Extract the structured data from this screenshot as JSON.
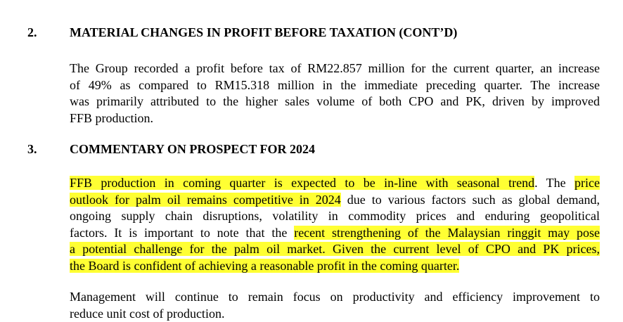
{
  "section2": {
    "number": "2.",
    "title": "MATERIAL CHANGES IN PROFIT BEFORE TAXATION (CONT’D)",
    "lines": [
      "The Group recorded a profit before tax of RM22.857 million for the current quarter, an increase",
      "of 49% as compared to RM15.318 million in the immediate preceding quarter. The increase",
      "was primarily attributed to the higher sales volume of both CPO and PK, driven by improved",
      "FFB production."
    ]
  },
  "section3": {
    "number": "3.",
    "title": "COMMENTARY ON PROSPECT FOR 2024",
    "para1": {
      "l1_hl1": "FFB production in coming quarter is expected to be in-line with seasonal trend",
      "l1_t1": ". The ",
      "l1_hl2": "price",
      "l2_hl1": "outlook for palm oil remains competitive in 2024",
      "l2_t1": " due to various factors such as global demand,",
      "l3": "ongoing supply chain disruptions, volatility in commodity prices and enduring geopolitical",
      "l4_t1": "factors. It is important to note that the ",
      "l4_hl1": "recent strengthening of the Malaysian ringgit may pose",
      "l5_hl1": "a potential challenge for the palm oil market. Given the current level of CPO and PK prices,",
      "l6_hl1": "the Board is confident of achieving a reasonable profit in the coming quarter."
    },
    "para2": {
      "lines": [
        "Management will continue to remain focus on productivity and efficiency improvement to",
        "reduce unit cost of production."
      ]
    }
  },
  "highlight_color": "#ffff33"
}
